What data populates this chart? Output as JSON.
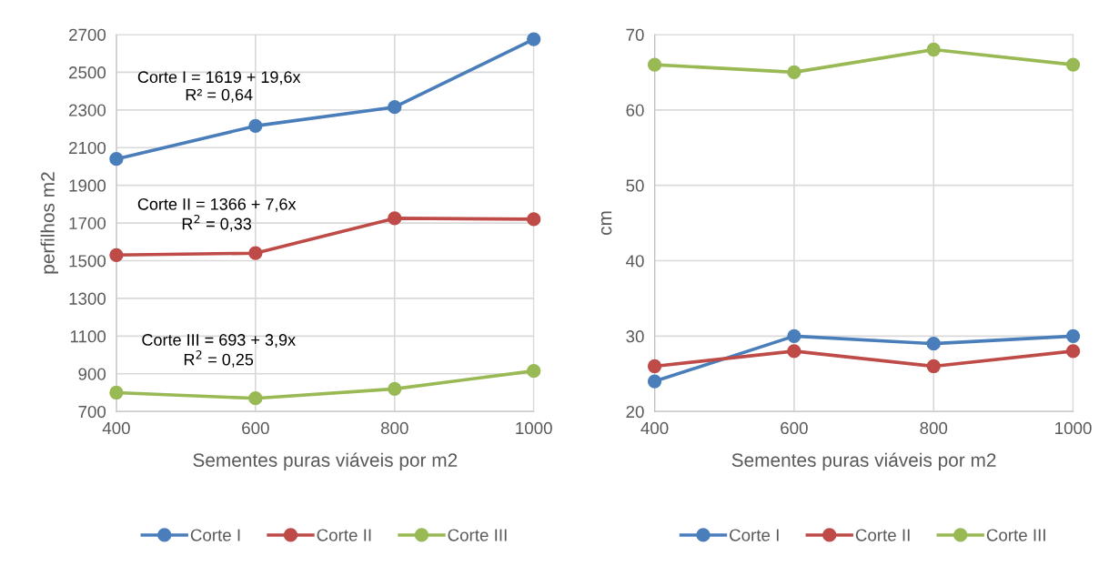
{
  "chart_data": [
    {
      "type": "line",
      "x": [
        400,
        600,
        800,
        1000
      ],
      "xlim": [
        400,
        1000
      ],
      "xticks": [
        400,
        600,
        800,
        1000
      ],
      "ylim": [
        700,
        2700
      ],
      "yticks": [
        700,
        900,
        1100,
        1300,
        1500,
        1700,
        1900,
        2100,
        2300,
        2500,
        2700
      ],
      "xlabel": "Sementes puras viáveis por m2",
      "ylabel": "perfilhos m2",
      "grid": true,
      "legend": "bottom",
      "marker": "circle",
      "line_style": "solid",
      "series": [
        {
          "name": "Corte I",
          "color": "#4a7ebb",
          "values": [
            2040,
            2215,
            2315,
            2675
          ]
        },
        {
          "name": "Corte II",
          "color": "#be4b48",
          "values": [
            1530,
            1540,
            1725,
            1720
          ]
        },
        {
          "name": "Corte III",
          "color": "#98b954",
          "values": [
            800,
            770,
            820,
            915
          ]
        }
      ],
      "annotations": [
        "Corte I = 1619 + 19,6x\nR² = 0,64",
        "Corte II = 1366 + 7,6x\nR$^{2}$ = 0,33",
        "Corte III = 693 + 3,9x\nR$^{2}$ = 0,25"
      ]
    },
    {
      "type": "line",
      "x": [
        400,
        600,
        800,
        1000
      ],
      "xlim": [
        400,
        1000
      ],
      "xticks": [
        400,
        600,
        800,
        1000
      ],
      "ylim": [
        20,
        70
      ],
      "yticks": [
        20,
        30,
        40,
        50,
        60,
        70
      ],
      "xlabel": "Sementes puras viáveis por m2",
      "ylabel": "cm",
      "grid": true,
      "legend": "bottom",
      "marker": "circle",
      "line_style": "solid",
      "series": [
        {
          "name": "Corte I",
          "color": "#4a7ebb",
          "values": [
            24,
            30,
            29,
            30
          ]
        },
        {
          "name": "Corte II",
          "color": "#be4b48",
          "values": [
            26,
            28,
            26,
            28
          ]
        },
        {
          "name": "Corte III",
          "color": "#98b954",
          "values": [
            66,
            65,
            68,
            66
          ]
        }
      ]
    }
  ]
}
